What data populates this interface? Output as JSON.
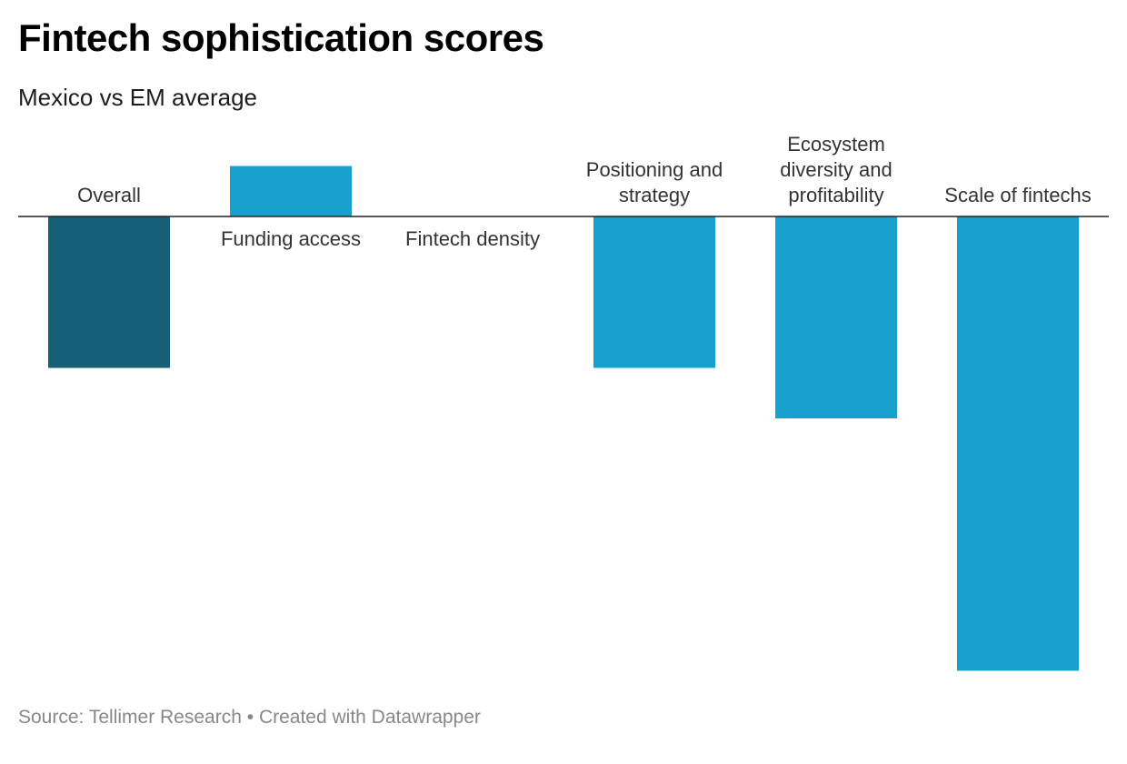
{
  "header": {
    "title": "Fintech sophistication scores",
    "subtitle": "Mexico vs EM average"
  },
  "footer": {
    "source_prefix": "Source:",
    "source": "Tellimer Research",
    "separator": "•",
    "created_with": "Created with Datawrapper"
  },
  "chart_data": {
    "type": "bar",
    "title": "Fintech sophistication scores",
    "subtitle": "Mexico vs EM average",
    "categories": [
      [
        "Overall"
      ],
      [
        "Funding access"
      ],
      [
        "Fintech density"
      ],
      [
        "Positioning and",
        "strategy"
      ],
      [
        "Ecosystem",
        "diversity and",
        "profitability"
      ],
      [
        "Scale of fintechs"
      ]
    ],
    "values": [
      -1.5,
      0.5,
      0,
      -1.5,
      -2.0,
      -4.5
    ],
    "colors": [
      "#155f78",
      "#18a1cd",
      "#18a1cd",
      "#18a1cd",
      "#18a1cd",
      "#18a1cd"
    ],
    "ylim": [
      -4.5,
      0.5
    ],
    "grid": false,
    "legend": "none"
  }
}
